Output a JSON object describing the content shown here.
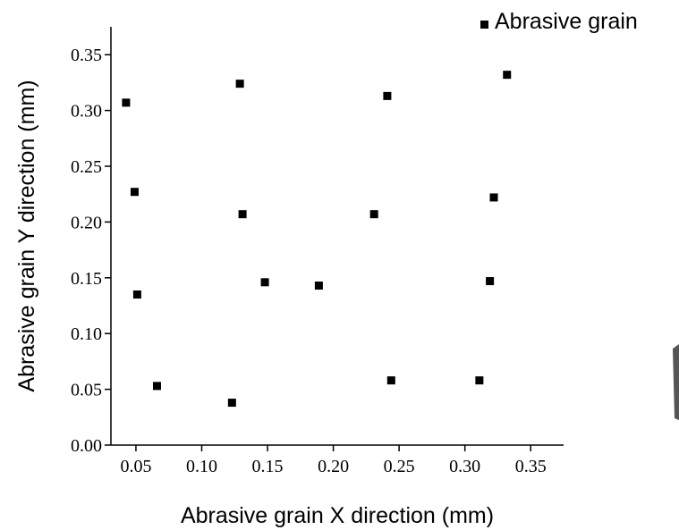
{
  "chart_data": {
    "type": "scatter",
    "xlabel": "Abrasive grain X direction (mm)",
    "ylabel": "Abrasive grain Y direction (mm)",
    "series": [
      {
        "name": "Abrasive grain",
        "color": "#000000",
        "x": [
          0.0425,
          0.049,
          0.051,
          0.066,
          0.129,
          0.131,
          0.123,
          0.148,
          0.189,
          0.241,
          0.231,
          0.244,
          0.311,
          0.319,
          0.322,
          0.332
        ],
        "values": [
          0.307,
          0.227,
          0.135,
          0.053,
          0.324,
          0.207,
          0.038,
          0.146,
          0.143,
          0.313,
          0.207,
          0.058,
          0.058,
          0.147,
          0.222,
          0.332
        ]
      }
    ],
    "xlim": [
      0.031,
      0.375
    ],
    "ylim": [
      0,
      0.375
    ],
    "xticks": [
      0.05,
      {
        "value": 0.1,
        "label": "0.10"
      },
      0.15,
      {
        "value": 0.2,
        "label": "0.20"
      },
      0.25,
      {
        "value": 0.3,
        "label": "0.30"
      },
      0.35
    ],
    "yticks": [
      {
        "value": 0,
        "label": "0.00"
      },
      0.05,
      {
        "value": 0.1,
        "label": "0.10"
      },
      0.15,
      {
        "value": 0.2,
        "label": "0.20"
      },
      0.25,
      {
        "value": 0.3,
        "label": "0.30"
      },
      0.35
    ],
    "legend": "top-right"
  }
}
